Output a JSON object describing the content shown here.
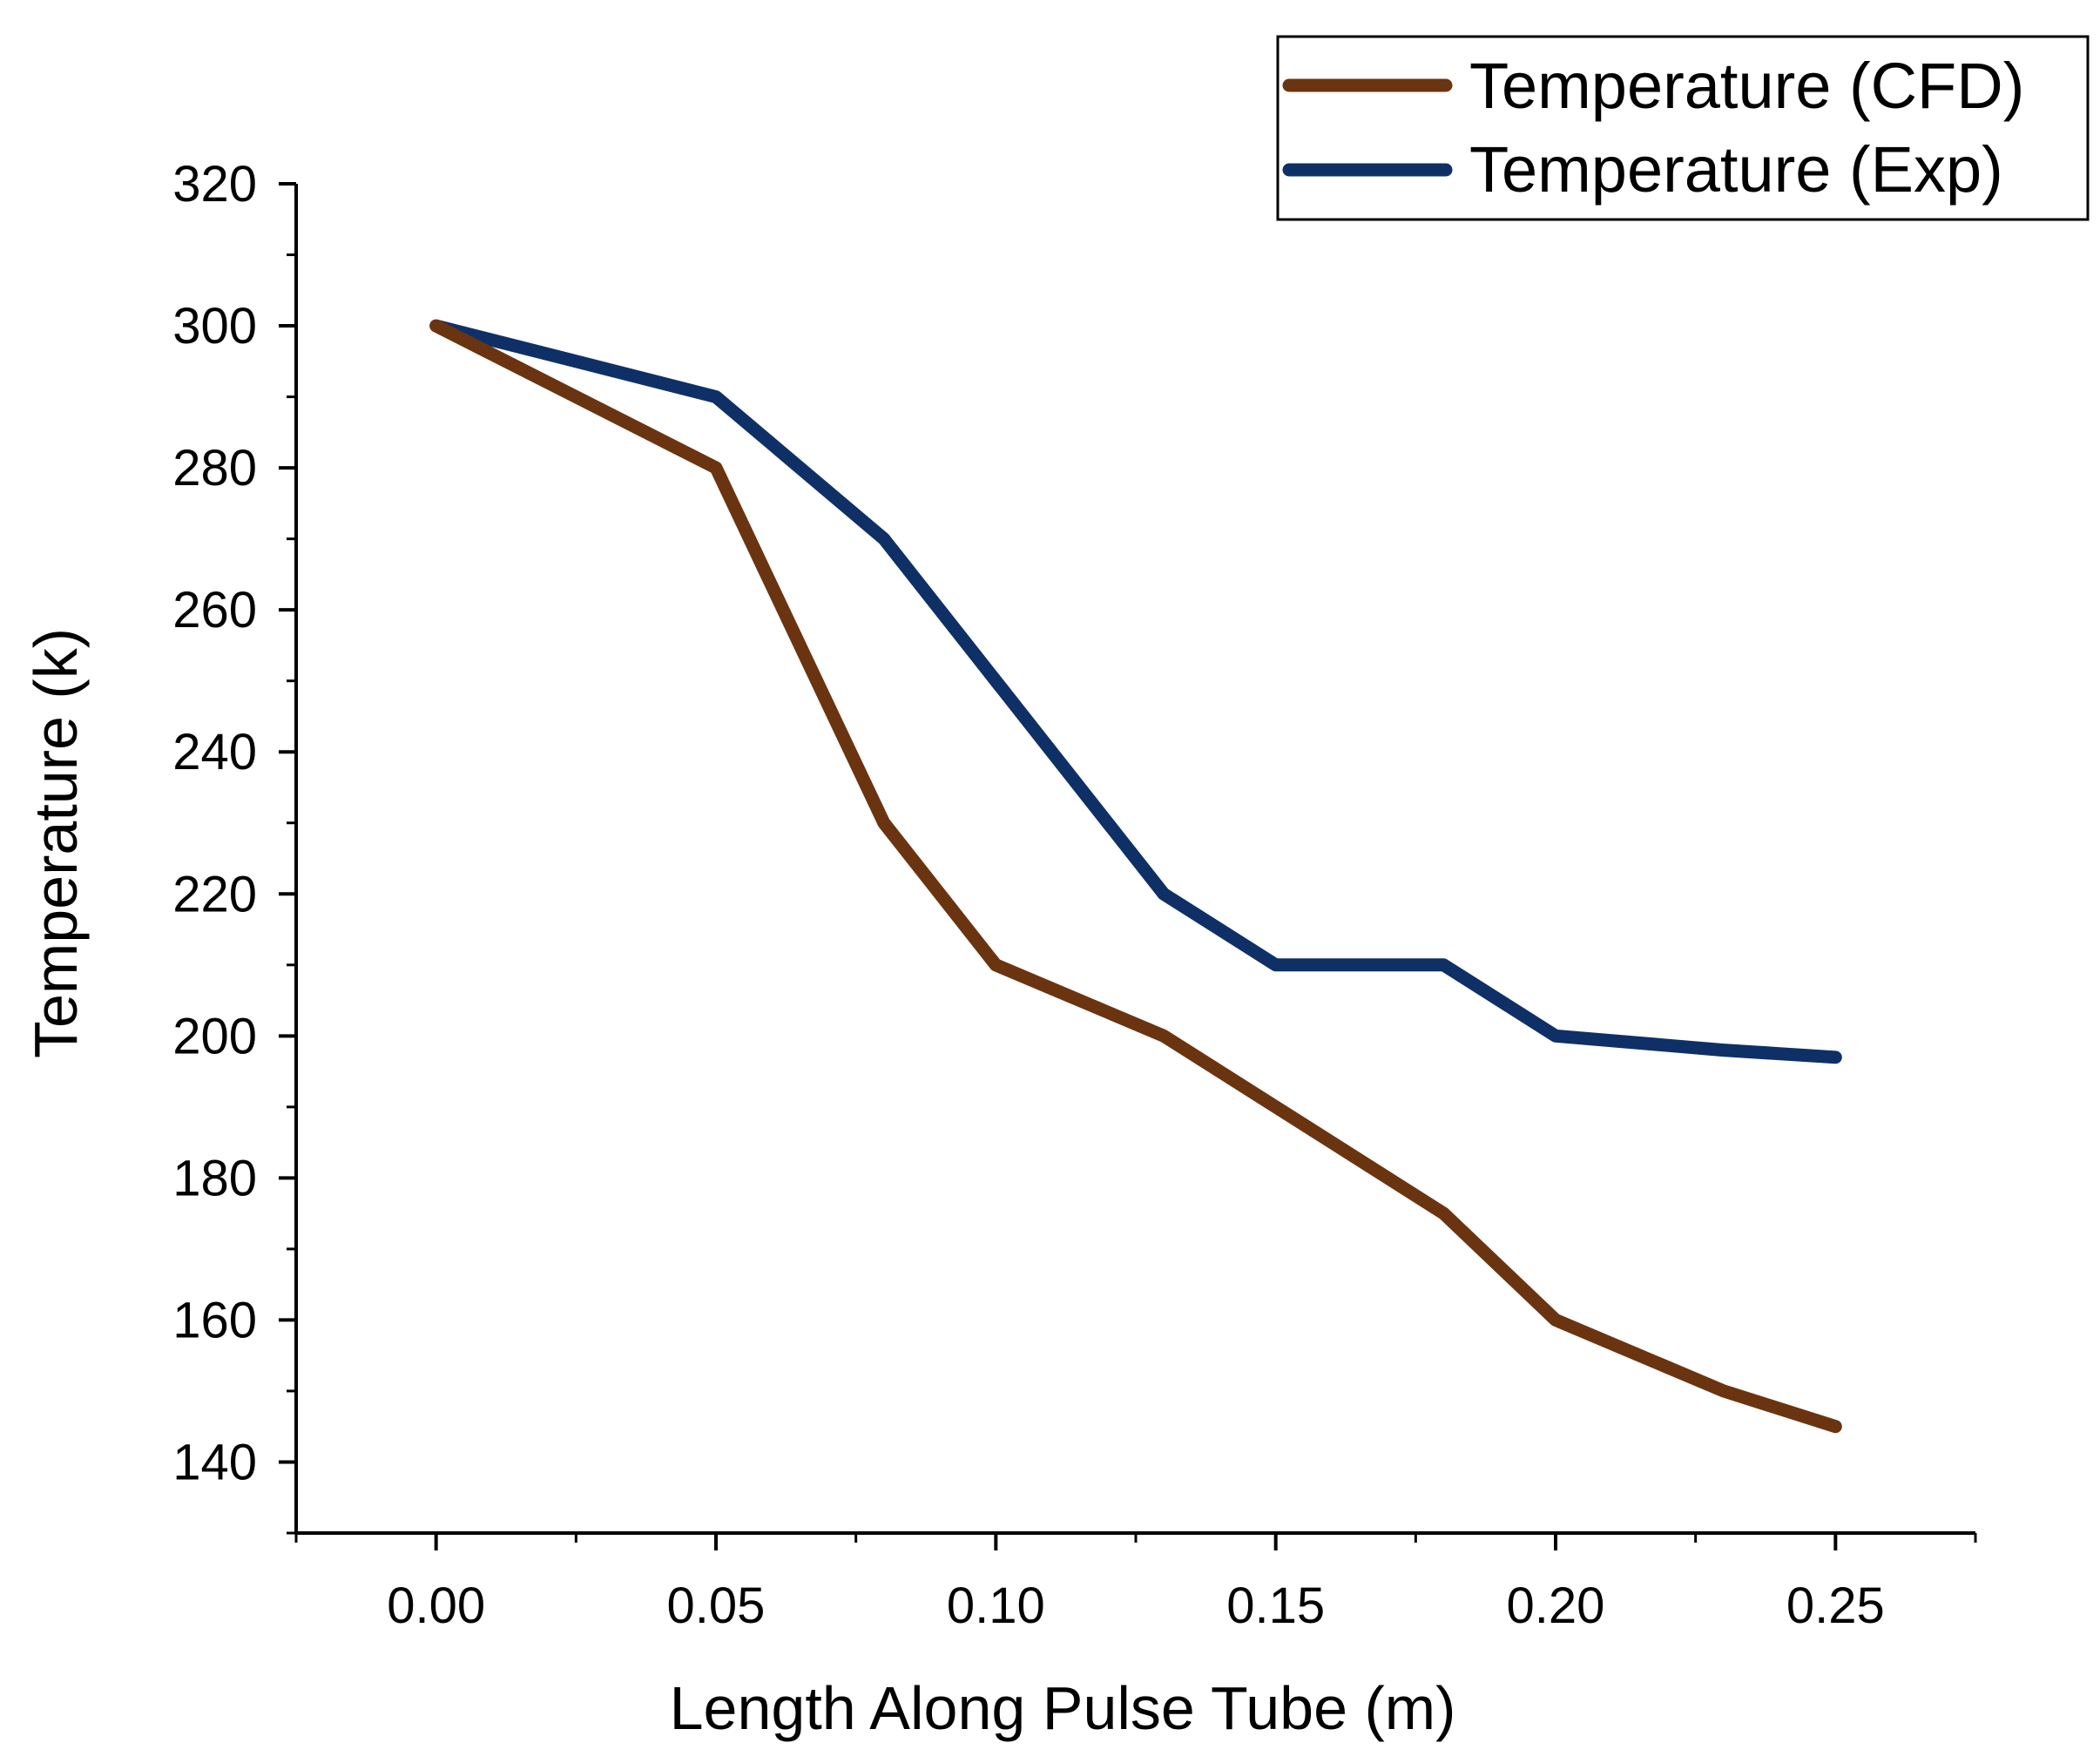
{
  "chart_data": {
    "type": "line",
    "title": "",
    "xlabel": "Length Along Pulse Tube (m)",
    "ylabel": "Temperature (k)",
    "xlim": [
      -0.025,
      0.275
    ],
    "ylim": [
      130,
      320
    ],
    "x_ticks": [
      0.0,
      0.05,
      0.1,
      0.15,
      0.2,
      0.25
    ],
    "x_tick_labels": [
      "0.00",
      "0.05",
      "0.10",
      "0.15",
      "0.20",
      "0.25"
    ],
    "y_ticks": [
      140,
      160,
      180,
      200,
      220,
      240,
      260,
      280,
      300,
      320
    ],
    "y_tick_labels": [
      "140",
      "160",
      "180",
      "200",
      "220",
      "240",
      "260",
      "280",
      "300",
      "320"
    ],
    "grid": false,
    "legend_position": "top-right",
    "series": [
      {
        "name": "Temperature (CFD)",
        "color": "#6b3410",
        "x": [
          0.0,
          0.05,
          0.08,
          0.1,
          0.13,
          0.15,
          0.18,
          0.2,
          0.23,
          0.25
        ],
        "values": [
          300,
          280,
          230,
          210,
          200,
          190,
          175,
          160,
          150,
          145
        ]
      },
      {
        "name": "Temperature (Exp)",
        "color": "#0f3066",
        "x": [
          0.0,
          0.05,
          0.08,
          0.1,
          0.13,
          0.15,
          0.18,
          0.2,
          0.23,
          0.25
        ],
        "values": [
          300,
          290,
          270,
          250,
          220,
          210,
          210,
          200,
          198,
          197
        ]
      }
    ]
  }
}
